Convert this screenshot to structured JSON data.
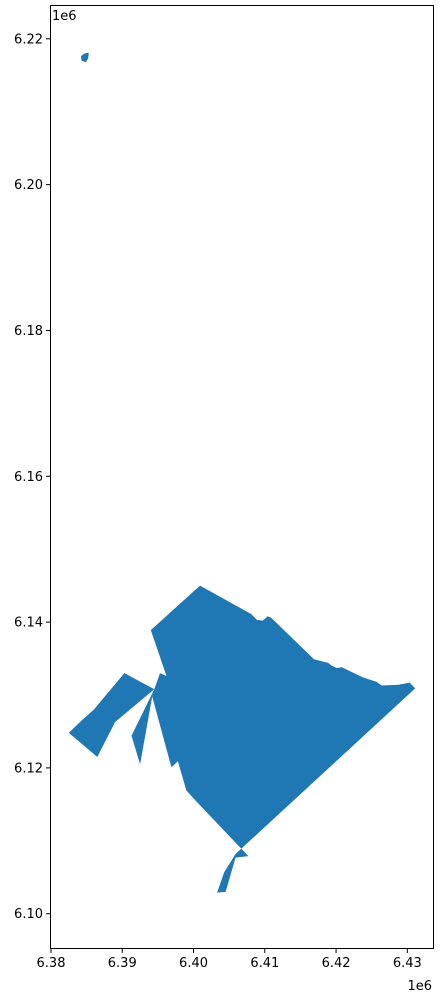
{
  "chart_data": {
    "type": "geo-polygon",
    "title": "",
    "xlabel": "",
    "ylabel": "",
    "x_offset_text": "1e6",
    "y_offset_text": "1e6",
    "xlim": [
      6.38,
      6.4336
    ],
    "ylim": [
      6.0953,
      6.2245
    ],
    "x_ticks": [
      {
        "value": 6.38,
        "label": "6.38"
      },
      {
        "value": 6.39,
        "label": "6.39"
      },
      {
        "value": 6.4,
        "label": "6.40"
      },
      {
        "value": 6.41,
        "label": "6.41"
      },
      {
        "value": 6.42,
        "label": "6.42"
      },
      {
        "value": 6.43,
        "label": "6.43"
      }
    ],
    "y_ticks": [
      {
        "value": 6.1,
        "label": "6.10"
      },
      {
        "value": 6.12,
        "label": "6.12"
      },
      {
        "value": 6.14,
        "label": "6.14"
      },
      {
        "value": 6.16,
        "label": "6.16"
      },
      {
        "value": 6.18,
        "label": "6.18"
      },
      {
        "value": 6.2,
        "label": "6.20"
      },
      {
        "value": 6.22,
        "label": "6.22"
      }
    ],
    "fill_color": "#1f77b4",
    "grid": false,
    "polygons": [
      [
        [
          6.4009,
          6.145
        ],
        [
          6.4081,
          6.1411
        ],
        [
          6.4089,
          6.1403
        ],
        [
          6.4097,
          6.1402
        ],
        [
          6.4104,
          6.1408
        ],
        [
          6.4109,
          6.1406
        ],
        [
          6.4169,
          6.1349
        ],
        [
          6.4189,
          6.1344
        ],
        [
          6.4194,
          6.134
        ],
        [
          6.4201,
          6.1337
        ],
        [
          6.4208,
          6.1338
        ],
        [
          6.4238,
          6.1324
        ],
        [
          6.4257,
          6.1318
        ],
        [
          6.4264,
          6.1313
        ],
        [
          6.4288,
          6.1314
        ],
        [
          6.4303,
          6.1317
        ],
        [
          6.4311,
          6.1309
        ],
        [
          6.4059,
          6.1082
        ],
        [
          6.4043,
          6.1057
        ],
        [
          6.4033,
          6.1029
        ],
        [
          6.4045,
          6.103
        ],
        [
          6.4059,
          6.1077
        ],
        [
          6.4077,
          6.1079
        ],
        [
          6.4003,
          6.1155
        ],
        [
          6.399,
          6.1169
        ],
        [
          6.3978,
          6.1209
        ],
        [
          6.3969,
          6.1201
        ],
        [
          6.3942,
          6.1298
        ],
        [
          6.3925,
          6.1205
        ],
        [
          6.3913,
          6.1244
        ],
        [
          6.3945,
          6.1308
        ],
        [
          6.3953,
          6.133
        ],
        [
          6.3962,
          6.1326
        ],
        [
          6.394,
          6.1389
        ],
        [
          6.4009,
          6.145
        ]
      ],
      [
        [
          6.3903,
          6.133
        ],
        [
          6.3945,
          6.1308
        ],
        [
          6.389,
          6.1263
        ],
        [
          6.3865,
          6.1215
        ],
        [
          6.3825,
          6.1248
        ],
        [
          6.3843,
          6.1265
        ],
        [
          6.386,
          6.128
        ],
        [
          6.3903,
          6.133
        ]
      ],
      [
        [
          6.3847,
          6.218
        ],
        [
          6.3853,
          6.2181
        ],
        [
          6.3852,
          6.2173
        ],
        [
          6.3849,
          6.2168
        ],
        [
          6.3843,
          6.217
        ],
        [
          6.3842,
          6.2176
        ],
        [
          6.3847,
          6.218
        ]
      ]
    ]
  }
}
